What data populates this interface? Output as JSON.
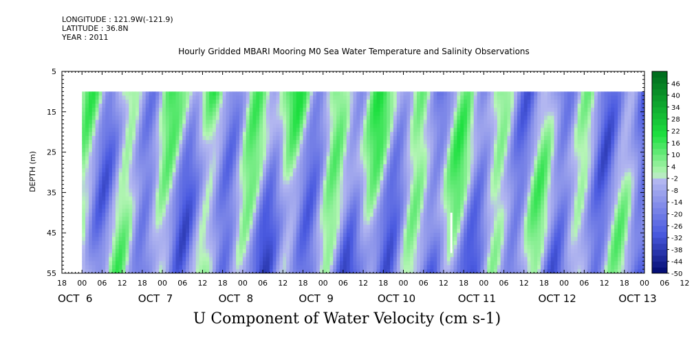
{
  "header": {
    "longitude": "LONGITUDE : 121.9W(-121.9)",
    "latitude": "LATITUDE : 36.8N",
    "year": "YEAR : 2011"
  },
  "chart_data": {
    "type": "heatmap",
    "title": "Hourly Gridded MBARI Mooring M0 Sea Water Temperature and Salinity Observations",
    "xlabel": "U Component of Water Velocity (cm s-1)",
    "ylabel": "DEPTH (m)",
    "ylim": [
      55,
      5
    ],
    "yticks": [
      5,
      15,
      25,
      35,
      45,
      55
    ],
    "data_depth_range": [
      10,
      55
    ],
    "x_hour_labels": [
      "18",
      "00",
      "06",
      "12",
      "18",
      "00",
      "06",
      "12",
      "18",
      "00",
      "06",
      "12",
      "18",
      "00",
      "06",
      "12",
      "18",
      "00",
      "06",
      "12",
      "18",
      "00",
      "06",
      "12",
      "18",
      "00",
      "06",
      "12",
      "18",
      "00",
      "06",
      "12"
    ],
    "x_day_labels": [
      {
        "label": "OCT  6",
        "hour": 0
      },
      {
        "label": "OCT  7",
        "hour": 24
      },
      {
        "label": "OCT  8",
        "hour": 48
      },
      {
        "label": "OCT  9",
        "hour": 72
      },
      {
        "label": "OCT 10",
        "hour": 96
      },
      {
        "label": "OCT 11",
        "hour": 120
      },
      {
        "label": "OCT 12",
        "hour": 144
      },
      {
        "label": "OCT 13",
        "hour": 168
      }
    ],
    "x_hours_range": [
      -6,
      168
    ],
    "colorbar": {
      "labels": [
        "46",
        "40",
        "34",
        "28",
        "22",
        "16",
        "10",
        "4",
        "-2",
        "-8",
        "-14",
        "-20",
        "-26",
        "-32",
        "-38",
        "-44",
        "-50"
      ],
      "min": -50,
      "max": 52,
      "step": 3
    },
    "colors": {
      "negative_strong": "#000a6e",
      "negative_mid": "#4a5ae0",
      "negative_weak": "#b4b8f0",
      "positive_weak": "#b8f5b8",
      "positive_mid": "#1ee040",
      "positive_strong": "#006e1e"
    },
    "gap_marker": {
      "hour": 110,
      "depth_range": [
        40,
        50
      ]
    }
  }
}
